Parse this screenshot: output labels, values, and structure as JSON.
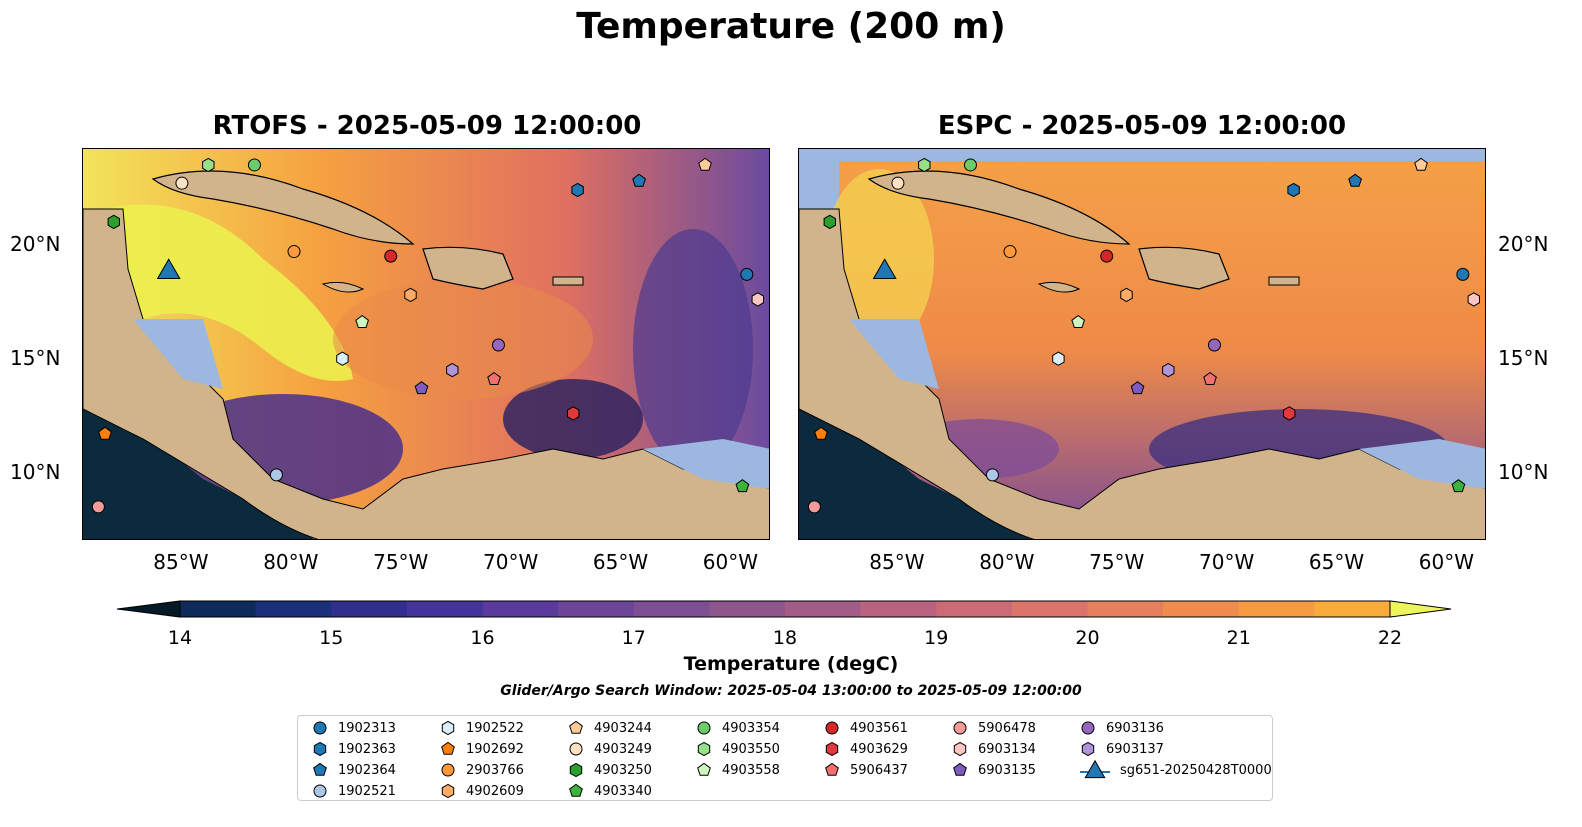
{
  "figure": {
    "title": "Temperature (200 m)",
    "panels": [
      {
        "title": "RTOFS - 2025-05-09 12:00:00"
      },
      {
        "title": "ESPC - 2025-05-09 12:00:00"
      }
    ],
    "lon_ticks": [
      "85°W",
      "80°W",
      "75°W",
      "70°W",
      "65°W",
      "60°W"
    ],
    "lat_ticks": [
      "20°N",
      "15°N",
      "10°N"
    ],
    "colorbar": {
      "label": "Temperature (degC)",
      "ticks": [
        "14",
        "15",
        "16",
        "17",
        "18",
        "19",
        "20",
        "21",
        "22"
      ],
      "min": 14,
      "max": 22,
      "extend": "both"
    },
    "search_window": "Glider/Argo Search Window: 2025-05-04 13:00:00 to 2025-05-09 12:00:00"
  },
  "colors": {
    "land": "#d2b48c",
    "shallow": "#9cb8e0",
    "deep_pacific": "#0d2a3f",
    "warm": "#f59b3a",
    "hot": "#f2f25a",
    "cool": "#5a3c99"
  },
  "legend": [
    {
      "id": "1902313",
      "marker": "circle",
      "color": "#1f77b4"
    },
    {
      "id": "1902363",
      "marker": "hexagon",
      "color": "#1f77b4"
    },
    {
      "id": "1902364",
      "marker": "pentagon",
      "color": "#1f77b4"
    },
    {
      "id": "1902521",
      "marker": "circle",
      "color": "#aec7e8"
    },
    {
      "id": "1902522",
      "marker": "hexagon",
      "color": "#d9eefa"
    },
    {
      "id": "1902692",
      "marker": "pentagon",
      "color": "#ff7f0e"
    },
    {
      "id": "2903766",
      "marker": "circle",
      "color": "#ff9a3c"
    },
    {
      "id": "4902609",
      "marker": "hexagon",
      "color": "#ffad66"
    },
    {
      "id": "4903244",
      "marker": "pentagon",
      "color": "#ffcc99"
    },
    {
      "id": "4903249",
      "marker": "circle",
      "color": "#ffe0c0"
    },
    {
      "id": "4903250",
      "marker": "hexagon",
      "color": "#2ca02c"
    },
    {
      "id": "4903340",
      "marker": "pentagon",
      "color": "#3cb43c"
    },
    {
      "id": "4903354",
      "marker": "circle",
      "color": "#6ccc6c"
    },
    {
      "id": "4903550",
      "marker": "hexagon",
      "color": "#98df8a"
    },
    {
      "id": "4903558",
      "marker": "pentagon",
      "color": "#ccf5c0"
    },
    {
      "id": "4903561",
      "marker": "circle",
      "color": "#d62728"
    },
    {
      "id": "4903629",
      "marker": "hexagon",
      "color": "#e0393b"
    },
    {
      "id": "5906437",
      "marker": "pentagon",
      "color": "#f07070"
    },
    {
      "id": "5906478",
      "marker": "circle",
      "color": "#f59a9a"
    },
    {
      "id": "6903134",
      "marker": "hexagon",
      "color": "#ffc4c4"
    },
    {
      "id": "6903135",
      "marker": "pentagon",
      "color": "#7f5bbf"
    },
    {
      "id": "6903136",
      "marker": "circle",
      "color": "#9467bd"
    },
    {
      "id": "6903137",
      "marker": "hexagon",
      "color": "#b094d8"
    },
    {
      "id": "sg651-20250428T0000",
      "marker": "triangle",
      "color": "#1f77b4"
    }
  ],
  "markers": [
    {
      "id": "1902313",
      "lon": -59.3,
      "lat": 18.7
    },
    {
      "id": "1902363",
      "lon": -67.0,
      "lat": 22.4
    },
    {
      "id": "1902364",
      "lon": -64.2,
      "lat": 22.8
    },
    {
      "id": "1902521",
      "lon": -80.7,
      "lat": 9.9
    },
    {
      "id": "1902522",
      "lon": -77.7,
      "lat": 15.0
    },
    {
      "id": "1902692",
      "lon": -88.5,
      "lat": 11.7
    },
    {
      "id": "2903766",
      "lon": -79.9,
      "lat": 19.7
    },
    {
      "id": "4902609",
      "lon": -74.6,
      "lat": 17.8
    },
    {
      "id": "4903244",
      "lon": -61.2,
      "lat": 23.5
    },
    {
      "id": "4903249",
      "lon": -85.0,
      "lat": 22.7
    },
    {
      "id": "4903250",
      "lon": -88.1,
      "lat": 21.0
    },
    {
      "id": "4903340",
      "lon": -59.5,
      "lat": 9.4
    },
    {
      "id": "4903354",
      "lon": -81.7,
      "lat": 23.5
    },
    {
      "id": "4903550",
      "lon": -83.8,
      "lat": 23.5
    },
    {
      "id": "4903558",
      "lon": -76.8,
      "lat": 16.6
    },
    {
      "id": "4903561",
      "lon": -75.5,
      "lat": 19.5
    },
    {
      "id": "4903629",
      "lon": -67.2,
      "lat": 12.6
    },
    {
      "id": "5906437",
      "lon": -70.8,
      "lat": 14.1
    },
    {
      "id": "5906478",
      "lon": -88.8,
      "lat": 8.5
    },
    {
      "id": "6903134",
      "lon": -58.8,
      "lat": 17.6
    },
    {
      "id": "6903135",
      "lon": -74.1,
      "lat": 13.7
    },
    {
      "id": "6903136",
      "lon": -70.6,
      "lat": 15.6
    },
    {
      "id": "6903137",
      "lon": -72.7,
      "lat": 14.5
    },
    {
      "id": "sg651-20250428T0000",
      "lon": -85.6,
      "lat": 18.8
    }
  ]
}
